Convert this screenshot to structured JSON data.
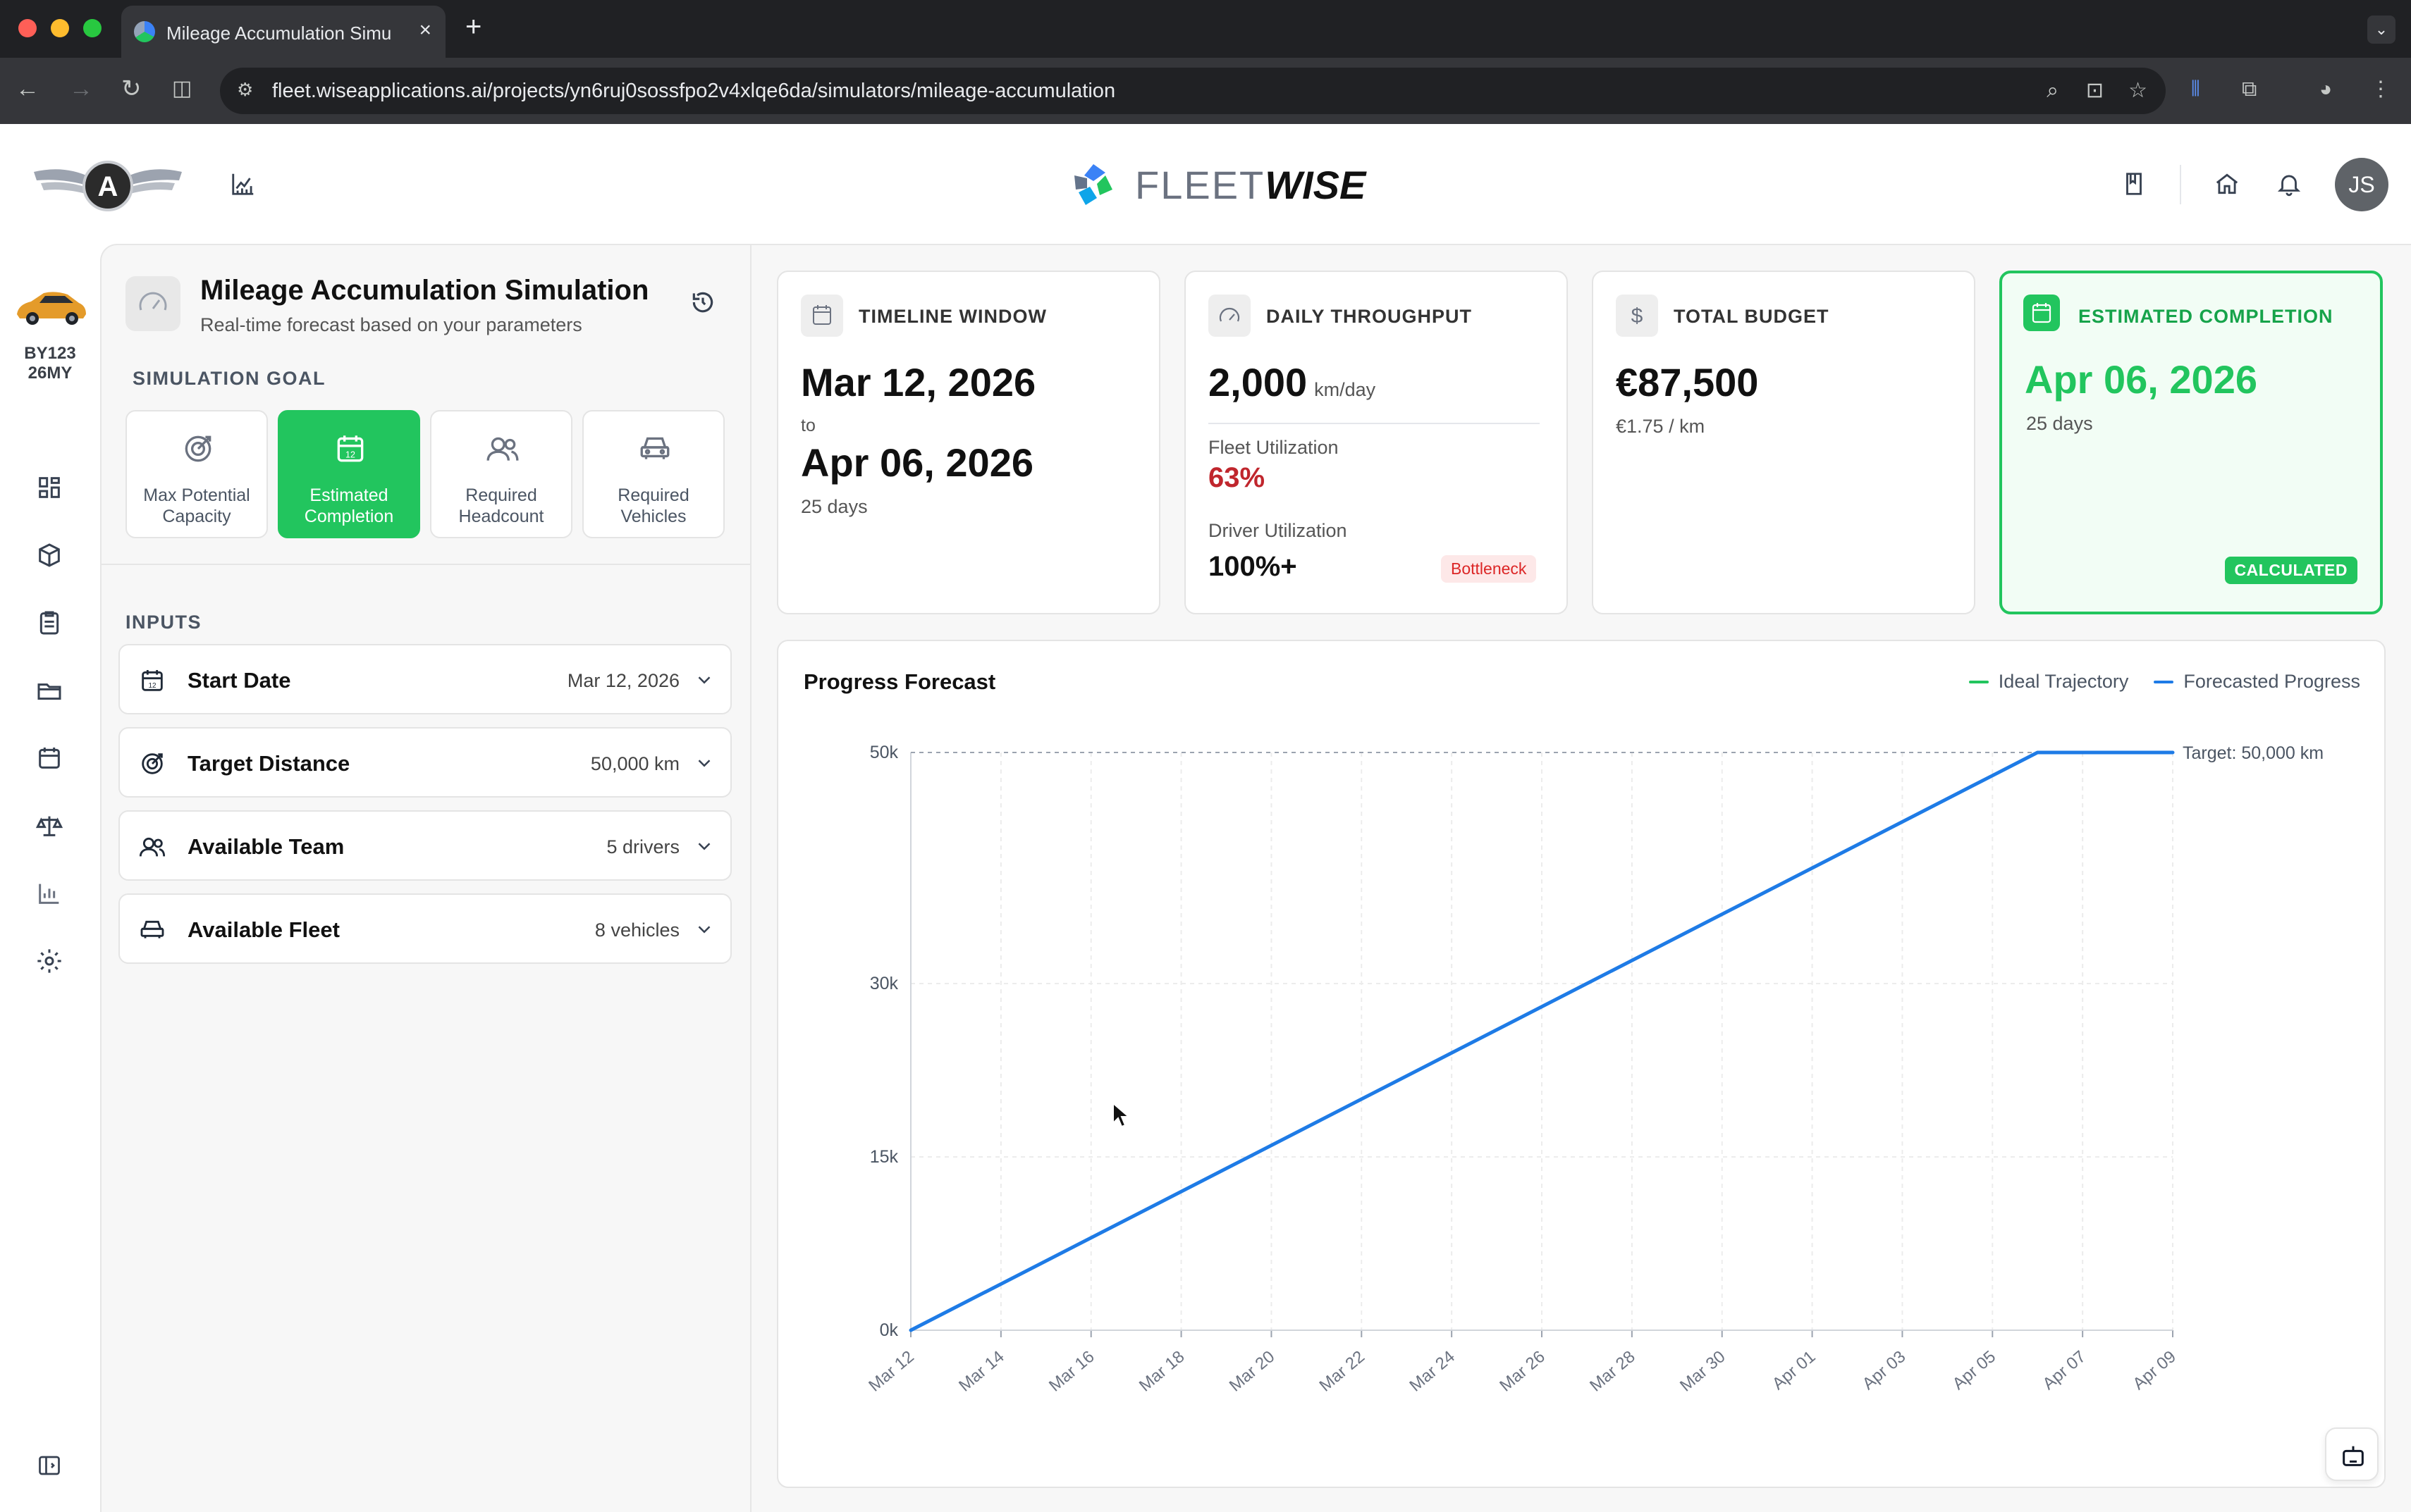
{
  "browser": {
    "tab_title": "Mileage Accumulation Simula",
    "url": "fleet.wiseapplications.ai/projects/yn6ruj0sossfpo2v4xlqe6da/simulators/mileage-accumulation"
  },
  "header": {
    "brand_light": "FLEET",
    "brand_bold": "WISE",
    "avatar_initials": "JS"
  },
  "rail": {
    "vehicle_plate_line1": "BY123",
    "vehicle_plate_line2": "26MY",
    "icons": [
      "dashboard-icon",
      "box-icon",
      "clipboard-icon",
      "folder-icon",
      "calendar-icon",
      "scale-icon",
      "bar-chart-icon",
      "settings-icon",
      "sidebar-toggle-icon"
    ]
  },
  "panel": {
    "title": "Mileage Accumulation Simulation",
    "subtitle": "Real-time forecast based on your parameters",
    "goal_section": "SIMULATION GOAL",
    "goals": [
      {
        "label": "Max Potential\nCapacity",
        "icon": "target-icon",
        "active": false
      },
      {
        "label": "Estimated\nCompletion",
        "icon": "calendar-icon",
        "active": true
      },
      {
        "label": "Required\nHeadcount",
        "icon": "users-icon",
        "active": false
      },
      {
        "label": "Required\nVehicles",
        "icon": "car-icon",
        "active": false
      }
    ],
    "inputs_section": "INPUTS",
    "inputs": [
      {
        "label": "Start Date",
        "value": "Mar 12, 2026",
        "icon": "calendar-icon"
      },
      {
        "label": "Target Distance",
        "value": "50,000 km",
        "icon": "target-icon"
      },
      {
        "label": "Available Team",
        "value": "5 drivers",
        "icon": "users-icon"
      },
      {
        "label": "Available Fleet",
        "value": "8 vehicles",
        "icon": "car-icon"
      }
    ]
  },
  "kpis": {
    "timeline": {
      "title": "TIMELINE WINDOW",
      "start": "Mar 12, 2026",
      "to": "to",
      "end": "Apr 06, 2026",
      "days": "25 days"
    },
    "throughput": {
      "title": "DAILY THROUGHPUT",
      "value": "2,000",
      "unit": "km/day",
      "fleet_label": "Fleet Utilization",
      "fleet_value": "63%",
      "driver_label": "Driver Utilization",
      "driver_value": "100%+",
      "badge": "Bottleneck"
    },
    "budget": {
      "title": "TOTAL BUDGET",
      "value": "€87,500",
      "per_km": "€1.75 / km"
    },
    "completion": {
      "title": "ESTIMATED COMPLETION",
      "value": "Apr 06, 2026",
      "days": "25 days",
      "badge": "CALCULATED"
    }
  },
  "colors": {
    "accent_green": "#22c55e",
    "forecast_blue": "#1e7be6",
    "warning_red": "#c0262d"
  },
  "chart_data": {
    "type": "line",
    "title": "Progress Forecast",
    "categories": [
      "Mar 12",
      "Mar 14",
      "Mar 16",
      "Mar 18",
      "Mar 20",
      "Mar 22",
      "Mar 24",
      "Mar 26",
      "Mar 28",
      "Mar 30",
      "Apr 01",
      "Apr 03",
      "Apr 05",
      "Apr 07",
      "Apr 09"
    ],
    "y_ticks": [
      0,
      15000,
      30000,
      50000
    ],
    "y_tick_labels": [
      "0k",
      "15k",
      "30k",
      "50k"
    ],
    "ylim": [
      0,
      50000
    ],
    "x_days_range": [
      0,
      28
    ],
    "series": [
      {
        "name": "Ideal Trajectory",
        "color": "#22c55e",
        "points": []
      },
      {
        "name": "Forecasted Progress",
        "color": "#1e7be6",
        "points": [
          [
            0,
            0
          ],
          [
            24,
            48000
          ],
          [
            25,
            50000
          ],
          [
            28,
            50000
          ]
        ]
      }
    ],
    "target": {
      "value": 50000,
      "label": "Target: 50,000 km"
    },
    "grid": true
  }
}
